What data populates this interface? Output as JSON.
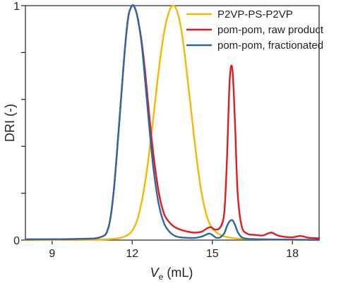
{
  "chart_data": {
    "type": "line",
    "xlabel_main": "V",
    "xlabel_sub": "e",
    "xlabel_unit": " (mL)",
    "ylabel": "DRI (-)",
    "xlim": [
      8,
      19
    ],
    "ylim": [
      0,
      1
    ],
    "x_ticks": [
      9,
      12,
      15,
      18
    ],
    "y_tick_labels": [
      {
        "value": 0,
        "label": "0"
      },
      {
        "value": 0.2,
        "label": ""
      },
      {
        "value": 0.4,
        "label": ""
      },
      {
        "value": 0.6,
        "label": ""
      },
      {
        "value": 0.8,
        "label": ""
      },
      {
        "value": 1,
        "label": "1"
      }
    ],
    "grid": false,
    "legend_position": "top-right",
    "series": [
      {
        "name": "P2VP-PS-P2VP",
        "color": "#F5B800",
        "x": [
          8.0,
          10.0,
          11.0,
          11.5,
          11.8,
          12.0,
          12.2,
          12.4,
          12.6,
          12.8,
          13.0,
          13.2,
          13.4,
          13.55,
          13.7,
          13.85,
          14.0,
          14.2,
          14.4,
          14.6,
          14.8,
          15.0,
          15.3,
          15.6,
          16.0,
          17.0,
          19.0
        ],
        "y": [
          0.0,
          0.001,
          0.003,
          0.008,
          0.02,
          0.04,
          0.09,
          0.19,
          0.34,
          0.53,
          0.73,
          0.89,
          0.98,
          1.0,
          0.97,
          0.89,
          0.76,
          0.56,
          0.36,
          0.2,
          0.1,
          0.05,
          0.022,
          0.012,
          0.006,
          0.003,
          0.0
        ]
      },
      {
        "name": "pom-pom, raw product",
        "color": "#E41A1C",
        "x": [
          8.0,
          10.0,
          10.8,
          11.1,
          11.3,
          11.5,
          11.7,
          11.85,
          12.0,
          12.1,
          12.2,
          12.35,
          12.5,
          12.65,
          12.8,
          13.0,
          13.2,
          13.4,
          13.6,
          13.8,
          14.0,
          14.3,
          14.6,
          14.8,
          14.95,
          15.1,
          15.3,
          15.45,
          15.55,
          15.65,
          15.75,
          15.85,
          15.95,
          16.1,
          16.3,
          16.6,
          16.9,
          17.2,
          17.5,
          18.0,
          18.3,
          18.6,
          19.0
        ],
        "y": [
          0.003,
          0.005,
          0.012,
          0.05,
          0.2,
          0.48,
          0.78,
          0.95,
          1.0,
          0.99,
          0.95,
          0.85,
          0.7,
          0.52,
          0.36,
          0.2,
          0.11,
          0.075,
          0.055,
          0.045,
          0.038,
          0.032,
          0.036,
          0.05,
          0.055,
          0.045,
          0.055,
          0.12,
          0.35,
          0.68,
          0.73,
          0.5,
          0.2,
          0.06,
          0.028,
          0.022,
          0.02,
          0.032,
          0.018,
          0.012,
          0.018,
          0.01,
          0.008
        ]
      },
      {
        "name": "pom-pom, fractionated",
        "color": "#2B66A8",
        "x": [
          8.0,
          10.0,
          10.8,
          11.1,
          11.3,
          11.5,
          11.7,
          11.85,
          12.0,
          12.1,
          12.2,
          12.35,
          12.5,
          12.65,
          12.8,
          13.0,
          13.2,
          13.4,
          13.6,
          13.8,
          14.0,
          14.2,
          14.4,
          14.6,
          14.8,
          14.9,
          15.0,
          15.15,
          15.3,
          15.45,
          15.55,
          15.65,
          15.75,
          15.85,
          15.95,
          16.1,
          16.3,
          16.6,
          17.0,
          18.0,
          19.0
        ],
        "y": [
          0.003,
          0.005,
          0.012,
          0.05,
          0.2,
          0.48,
          0.78,
          0.95,
          1.0,
          0.99,
          0.95,
          0.84,
          0.66,
          0.47,
          0.3,
          0.15,
          0.07,
          0.035,
          0.018,
          0.012,
          0.01,
          0.009,
          0.01,
          0.015,
          0.025,
          0.028,
          0.022,
          0.01,
          0.012,
          0.03,
          0.06,
          0.08,
          0.085,
          0.065,
          0.035,
          0.012,
          0.006,
          0.004,
          0.003,
          0.002,
          0.001
        ]
      }
    ]
  }
}
